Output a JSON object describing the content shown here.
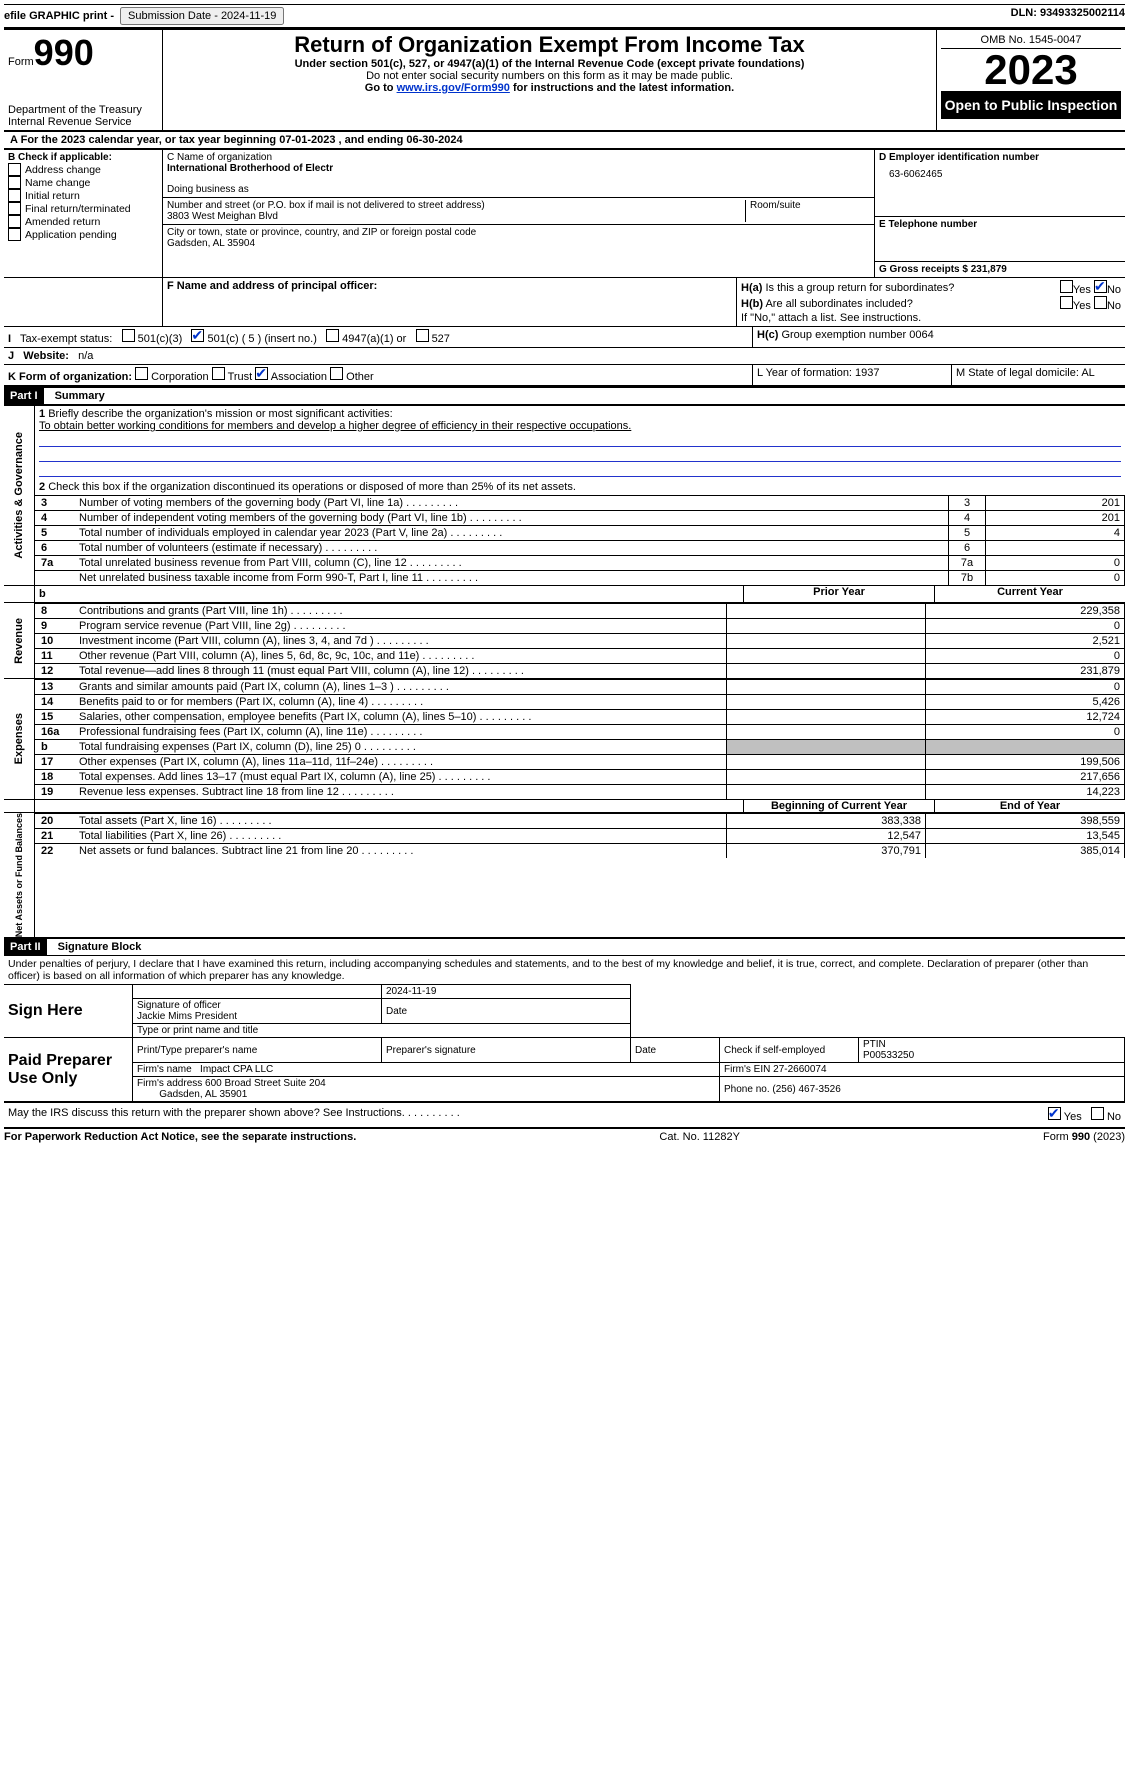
{
  "topbar": {
    "efile": "efile GRAPHIC print -",
    "submission": "Submission Date - 2024-11-19",
    "dln": "DLN: 93493325002114"
  },
  "header": {
    "form_label": "Form",
    "form_num": "990",
    "title": "Return of Organization Exempt From Income Tax",
    "subtitle1": "Under section 501(c), 527, or 4947(a)(1) of the Internal Revenue Code (except private foundations)",
    "subtitle2": "Do not enter social security numbers on this form as it may be made public.",
    "goto": "Go to ",
    "goto_link": "www.irs.gov/Form990",
    "goto_tail": " for instructions and the latest information.",
    "omb": "OMB No. 1545-0047",
    "year": "2023",
    "open": "Open to Public Inspection",
    "dept": "Department of the Treasury",
    "irs": "Internal Revenue Service"
  },
  "line_a": "For the 2023 calendar year, or tax year beginning 07-01-2023   , and ending 06-30-2024",
  "block_b": {
    "label": "B Check if applicable:",
    "opts": [
      "Address change",
      "Name change",
      "Initial return",
      "Final return/terminated",
      "Amended return",
      "Application pending"
    ]
  },
  "block_c": {
    "name_label": "C Name of organization",
    "name": "International Brotherhood of Electr",
    "dba_label": "Doing business as",
    "street_label": "Number and street (or P.O. box if mail is not delivered to street address)",
    "street": "3803 West Meighan Blvd",
    "room_label": "Room/suite",
    "city_label": "City or town, state or province, country, and ZIP or foreign postal code",
    "city": "Gadsden, AL  35904"
  },
  "block_d": {
    "label": "D Employer identification number",
    "val": "63-6062465"
  },
  "block_e": {
    "label": "E Telephone number"
  },
  "block_g": {
    "label": "G Gross receipts $ 231,879"
  },
  "block_f": {
    "label": "F  Name and address of principal officer:"
  },
  "block_h": {
    "a": "Is this a group return for subordinates?",
    "b": "Are all subordinates included?",
    "note": "If \"No,\" attach a list. See instructions.",
    "c": "Group exemption number    0064"
  },
  "block_i": {
    "label": "Tax-exempt status:",
    "o1": "501(c)(3)",
    "o2": "501(c) ( 5 ) (insert no.)",
    "o3": "4947(a)(1) or",
    "o4": "527"
  },
  "block_j": {
    "label": "Website:",
    "val": "n/a"
  },
  "block_k": {
    "label": "K Form of organization:",
    "o1": "Corporation",
    "o2": "Trust",
    "o3": "Association",
    "o4": "Other"
  },
  "block_l": "L Year of formation: 1937",
  "block_m": "M State of legal domicile: AL",
  "part1": {
    "hdr": "Part I",
    "title": "Summary"
  },
  "summary": {
    "l1": "Briefly describe the organization's mission or most significant activities:",
    "l1val": "To obtain better working conditions for members and develop a higher degree of efficiency in their respective occupations.",
    "l2": "Check this box      if the organization discontinued its operations or disposed of more than 25% of its net assets.",
    "rows_a": [
      {
        "n": "3",
        "t": "Number of voting members of the governing body (Part VI, line 1a)",
        "box": "3",
        "v": "201"
      },
      {
        "n": "4",
        "t": "Number of independent voting members of the governing body (Part VI, line 1b)",
        "box": "4",
        "v": "201"
      },
      {
        "n": "5",
        "t": "Total number of individuals employed in calendar year 2023 (Part V, line 2a)",
        "box": "5",
        "v": "4"
      },
      {
        "n": "6",
        "t": "Total number of volunteers (estimate if necessary)",
        "box": "6",
        "v": ""
      },
      {
        "n": "7a",
        "t": "Total unrelated business revenue from Part VIII, column (C), line 12",
        "box": "7a",
        "v": "0"
      },
      {
        "n": "",
        "t": "Net unrelated business taxable income from Form 990-T, Part I, line 11",
        "box": "7b",
        "v": "0"
      }
    ],
    "hdr_prior": "Prior Year",
    "hdr_curr": "Current Year",
    "revenue": [
      {
        "n": "8",
        "t": "Contributions and grants (Part VIII, line 1h)",
        "p": "",
        "c": "229,358"
      },
      {
        "n": "9",
        "t": "Program service revenue (Part VIII, line 2g)",
        "p": "",
        "c": "0"
      },
      {
        "n": "10",
        "t": "Investment income (Part VIII, column (A), lines 3, 4, and 7d )",
        "p": "",
        "c": "2,521"
      },
      {
        "n": "11",
        "t": "Other revenue (Part VIII, column (A), lines 5, 6d, 8c, 9c, 10c, and 11e)",
        "p": "",
        "c": "0"
      },
      {
        "n": "12",
        "t": "Total revenue—add lines 8 through 11 (must equal Part VIII, column (A), line 12)",
        "p": "",
        "c": "231,879"
      }
    ],
    "expenses": [
      {
        "n": "13",
        "t": "Grants and similar amounts paid (Part IX, column (A), lines 1–3 )",
        "p": "",
        "c": "0"
      },
      {
        "n": "14",
        "t": "Benefits paid to or for members (Part IX, column (A), line 4)",
        "p": "",
        "c": "5,426"
      },
      {
        "n": "15",
        "t": "Salaries, other compensation, employee benefits (Part IX, column (A), lines 5–10)",
        "p": "",
        "c": "12,724"
      },
      {
        "n": "16a",
        "t": "Professional fundraising fees (Part IX, column (A), line 11e)",
        "p": "",
        "c": "0"
      },
      {
        "n": "b",
        "t": "Total fundraising expenses (Part IX, column (D), line 25) 0",
        "p": "shade",
        "c": "shade"
      },
      {
        "n": "17",
        "t": "Other expenses (Part IX, column (A), lines 11a–11d, 11f–24e)",
        "p": "",
        "c": "199,506"
      },
      {
        "n": "18",
        "t": "Total expenses. Add lines 13–17 (must equal Part IX, column (A), line 25)",
        "p": "",
        "c": "217,656"
      },
      {
        "n": "19",
        "t": "Revenue less expenses. Subtract line 18 from line 12",
        "p": "",
        "c": "14,223"
      }
    ],
    "hdr_beg": "Beginning of Current Year",
    "hdr_end": "End of Year",
    "net": [
      {
        "n": "20",
        "t": "Total assets (Part X, line 16)",
        "p": "383,338",
        "c": "398,559"
      },
      {
        "n": "21",
        "t": "Total liabilities (Part X, line 26)",
        "p": "12,547",
        "c": "13,545"
      },
      {
        "n": "22",
        "t": "Net assets or fund balances. Subtract line 21 from line 20",
        "p": "370,791",
        "c": "385,014"
      }
    ]
  },
  "part2": {
    "hdr": "Part II",
    "title": "Signature Block"
  },
  "sig": {
    "decl": "Under penalties of perjury, I declare that I have examined this return, including accompanying schedules and statements, and to the best of my knowledge and belief, it is true, correct, and complete. Declaration of preparer (other than officer) is based on all information of which preparer has any knowledge.",
    "sign_here": "Sign Here",
    "date": "2024-11-19",
    "sig_label": "Signature of officer",
    "officer": "Jackie Mims  President",
    "type_label": "Type or print name and title",
    "date_label": "Date",
    "paid": "Paid Preparer Use Only",
    "prep_name_label": "Print/Type preparer's name",
    "prep_sig_label": "Preparer's signature",
    "check_self": "Check       if self-employed",
    "ptin_label": "PTIN",
    "ptin": "P00533250",
    "firm_name_label": "Firm's name",
    "firm_name": "Impact CPA LLC",
    "firm_ein": "Firm's EIN 27-2660074",
    "firm_addr_label": "Firm's address",
    "firm_addr1": "600 Broad Street Suite 204",
    "firm_addr2": "Gadsden, AL  35901",
    "phone": "Phone no. (256) 467-3526",
    "may_irs": "May the IRS discuss this return with the preparer shown above? See Instructions.",
    "yes": "Yes",
    "no": "No"
  },
  "footer": {
    "pra": "For Paperwork Reduction Act Notice, see the separate instructions.",
    "cat": "Cat. No. 11282Y",
    "form": "Form 990 (2023)"
  }
}
